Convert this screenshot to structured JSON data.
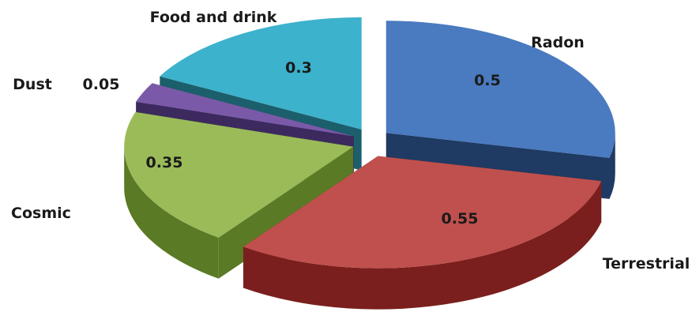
{
  "chart_data": {
    "type": "pie",
    "title": "",
    "exploded": true,
    "three_d": true,
    "slices": [
      {
        "name": "Radon",
        "value": 0.5,
        "value_label": "0.5",
        "color": "#4a7ac0",
        "side_color": "#1f3a63"
      },
      {
        "name": "Terrestrial",
        "value": 0.55,
        "value_label": "0.55",
        "color": "#c0504d",
        "side_color": "#7a1f1d"
      },
      {
        "name": "Cosmic",
        "value": 0.35,
        "value_label": "0.35",
        "color": "#9bbb59",
        "side_color": "#5a7a25"
      },
      {
        "name": "Dust",
        "value": 0.05,
        "value_label": "0.05",
        "color": "#7a5aa8",
        "side_color": "#3c2a5e"
      },
      {
        "name": "Food and drink",
        "value": 0.3,
        "value_label": "0.3",
        "color": "#3cb2cc",
        "side_color": "#1c5f6c"
      }
    ]
  }
}
